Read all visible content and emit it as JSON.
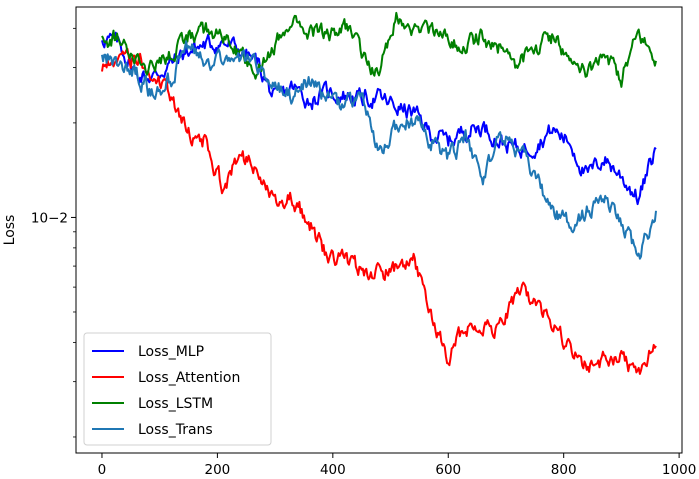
{
  "chart_data": {
    "type": "line",
    "ylabel": "Loss",
    "xlabel": "",
    "yscale": "log",
    "xlim": [
      -45,
      1005
    ],
    "ylim_log10": [
      -2.75,
      -1.33
    ],
    "x_ticks": [
      0,
      200,
      400,
      600,
      800,
      1000
    ],
    "y_tick_label": "10−2",
    "y_tick_value": 0.01,
    "grid": false,
    "legend": "lower-left",
    "series": [
      {
        "name": "Loss_MLP",
        "color": "#0000ff",
        "x": [
          0,
          30,
          60,
          90,
          120,
          150,
          180,
          210,
          240,
          270,
          300,
          330,
          360,
          390,
          420,
          450,
          480,
          510,
          540,
          570,
          600,
          630,
          660,
          690,
          720,
          750,
          780,
          810,
          840,
          870,
          900,
          930,
          960
        ],
        "y": [
          0.0375,
          0.0355,
          0.0285,
          0.028,
          0.031,
          0.034,
          0.0355,
          0.036,
          0.034,
          0.031,
          0.0235,
          0.026,
          0.0235,
          0.025,
          0.0245,
          0.024,
          0.024,
          0.0225,
          0.0215,
          0.0185,
          0.0175,
          0.019,
          0.0195,
          0.0175,
          0.0165,
          0.017,
          0.019,
          0.0175,
          0.0135,
          0.0155,
          0.0135,
          0.0115,
          0.0165
        ]
      },
      {
        "name": "Loss_Attention",
        "color": "#ff0000",
        "x": [
          0,
          30,
          60,
          90,
          120,
          150,
          180,
          210,
          240,
          270,
          300,
          330,
          360,
          390,
          420,
          450,
          480,
          510,
          540,
          570,
          600,
          630,
          660,
          690,
          720,
          750,
          780,
          810,
          840,
          870,
          900,
          930,
          960
        ],
        "y": [
          0.0305,
          0.0315,
          0.0325,
          0.0275,
          0.0245,
          0.0185,
          0.0175,
          0.0125,
          0.0155,
          0.0145,
          0.0115,
          0.0115,
          0.0095,
          0.0075,
          0.0075,
          0.0068,
          0.0066,
          0.0068,
          0.0073,
          0.0048,
          0.0036,
          0.0045,
          0.0045,
          0.0045,
          0.0058,
          0.0055,
          0.0045,
          0.0038,
          0.0033,
          0.0035,
          0.0036,
          0.0032,
          0.0039
        ]
      },
      {
        "name": "Loss_LSTM",
        "color": "#008000",
        "x": [
          0,
          30,
          60,
          90,
          120,
          150,
          180,
          210,
          240,
          270,
          300,
          330,
          360,
          390,
          420,
          450,
          480,
          510,
          540,
          570,
          600,
          630,
          660,
          690,
          720,
          750,
          780,
          810,
          840,
          870,
          900,
          930,
          960
        ],
        "y": [
          0.0365,
          0.0375,
          0.0315,
          0.0295,
          0.0335,
          0.0375,
          0.0395,
          0.0385,
          0.0325,
          0.0295,
          0.0345,
          0.0445,
          0.0395,
          0.0385,
          0.0405,
          0.0335,
          0.0285,
          0.0435,
          0.0395,
          0.0405,
          0.0365,
          0.0355,
          0.0375,
          0.0345,
          0.0305,
          0.0345,
          0.0375,
          0.0325,
          0.0285,
          0.0345,
          0.0275,
          0.0385,
          0.0315
        ]
      },
      {
        "name": "Loss_Trans",
        "color": "#1f77b4",
        "x": [
          0,
          30,
          60,
          90,
          120,
          150,
          180,
          210,
          240,
          270,
          300,
          330,
          360,
          390,
          420,
          450,
          480,
          510,
          540,
          570,
          600,
          630,
          660,
          690,
          720,
          750,
          780,
          810,
          840,
          870,
          900,
          930,
          960
        ],
        "y": [
          0.0325,
          0.0315,
          0.0285,
          0.0245,
          0.0275,
          0.0345,
          0.0305,
          0.0315,
          0.0325,
          0.0305,
          0.0265,
          0.0245,
          0.0275,
          0.0235,
          0.0225,
          0.0245,
          0.0155,
          0.0195,
          0.0205,
          0.0175,
          0.0155,
          0.0175,
          0.0135,
          0.0185,
          0.0165,
          0.0135,
          0.0105,
          0.0095,
          0.0105,
          0.0115,
          0.0095,
          0.0075,
          0.0105
        ]
      }
    ]
  }
}
